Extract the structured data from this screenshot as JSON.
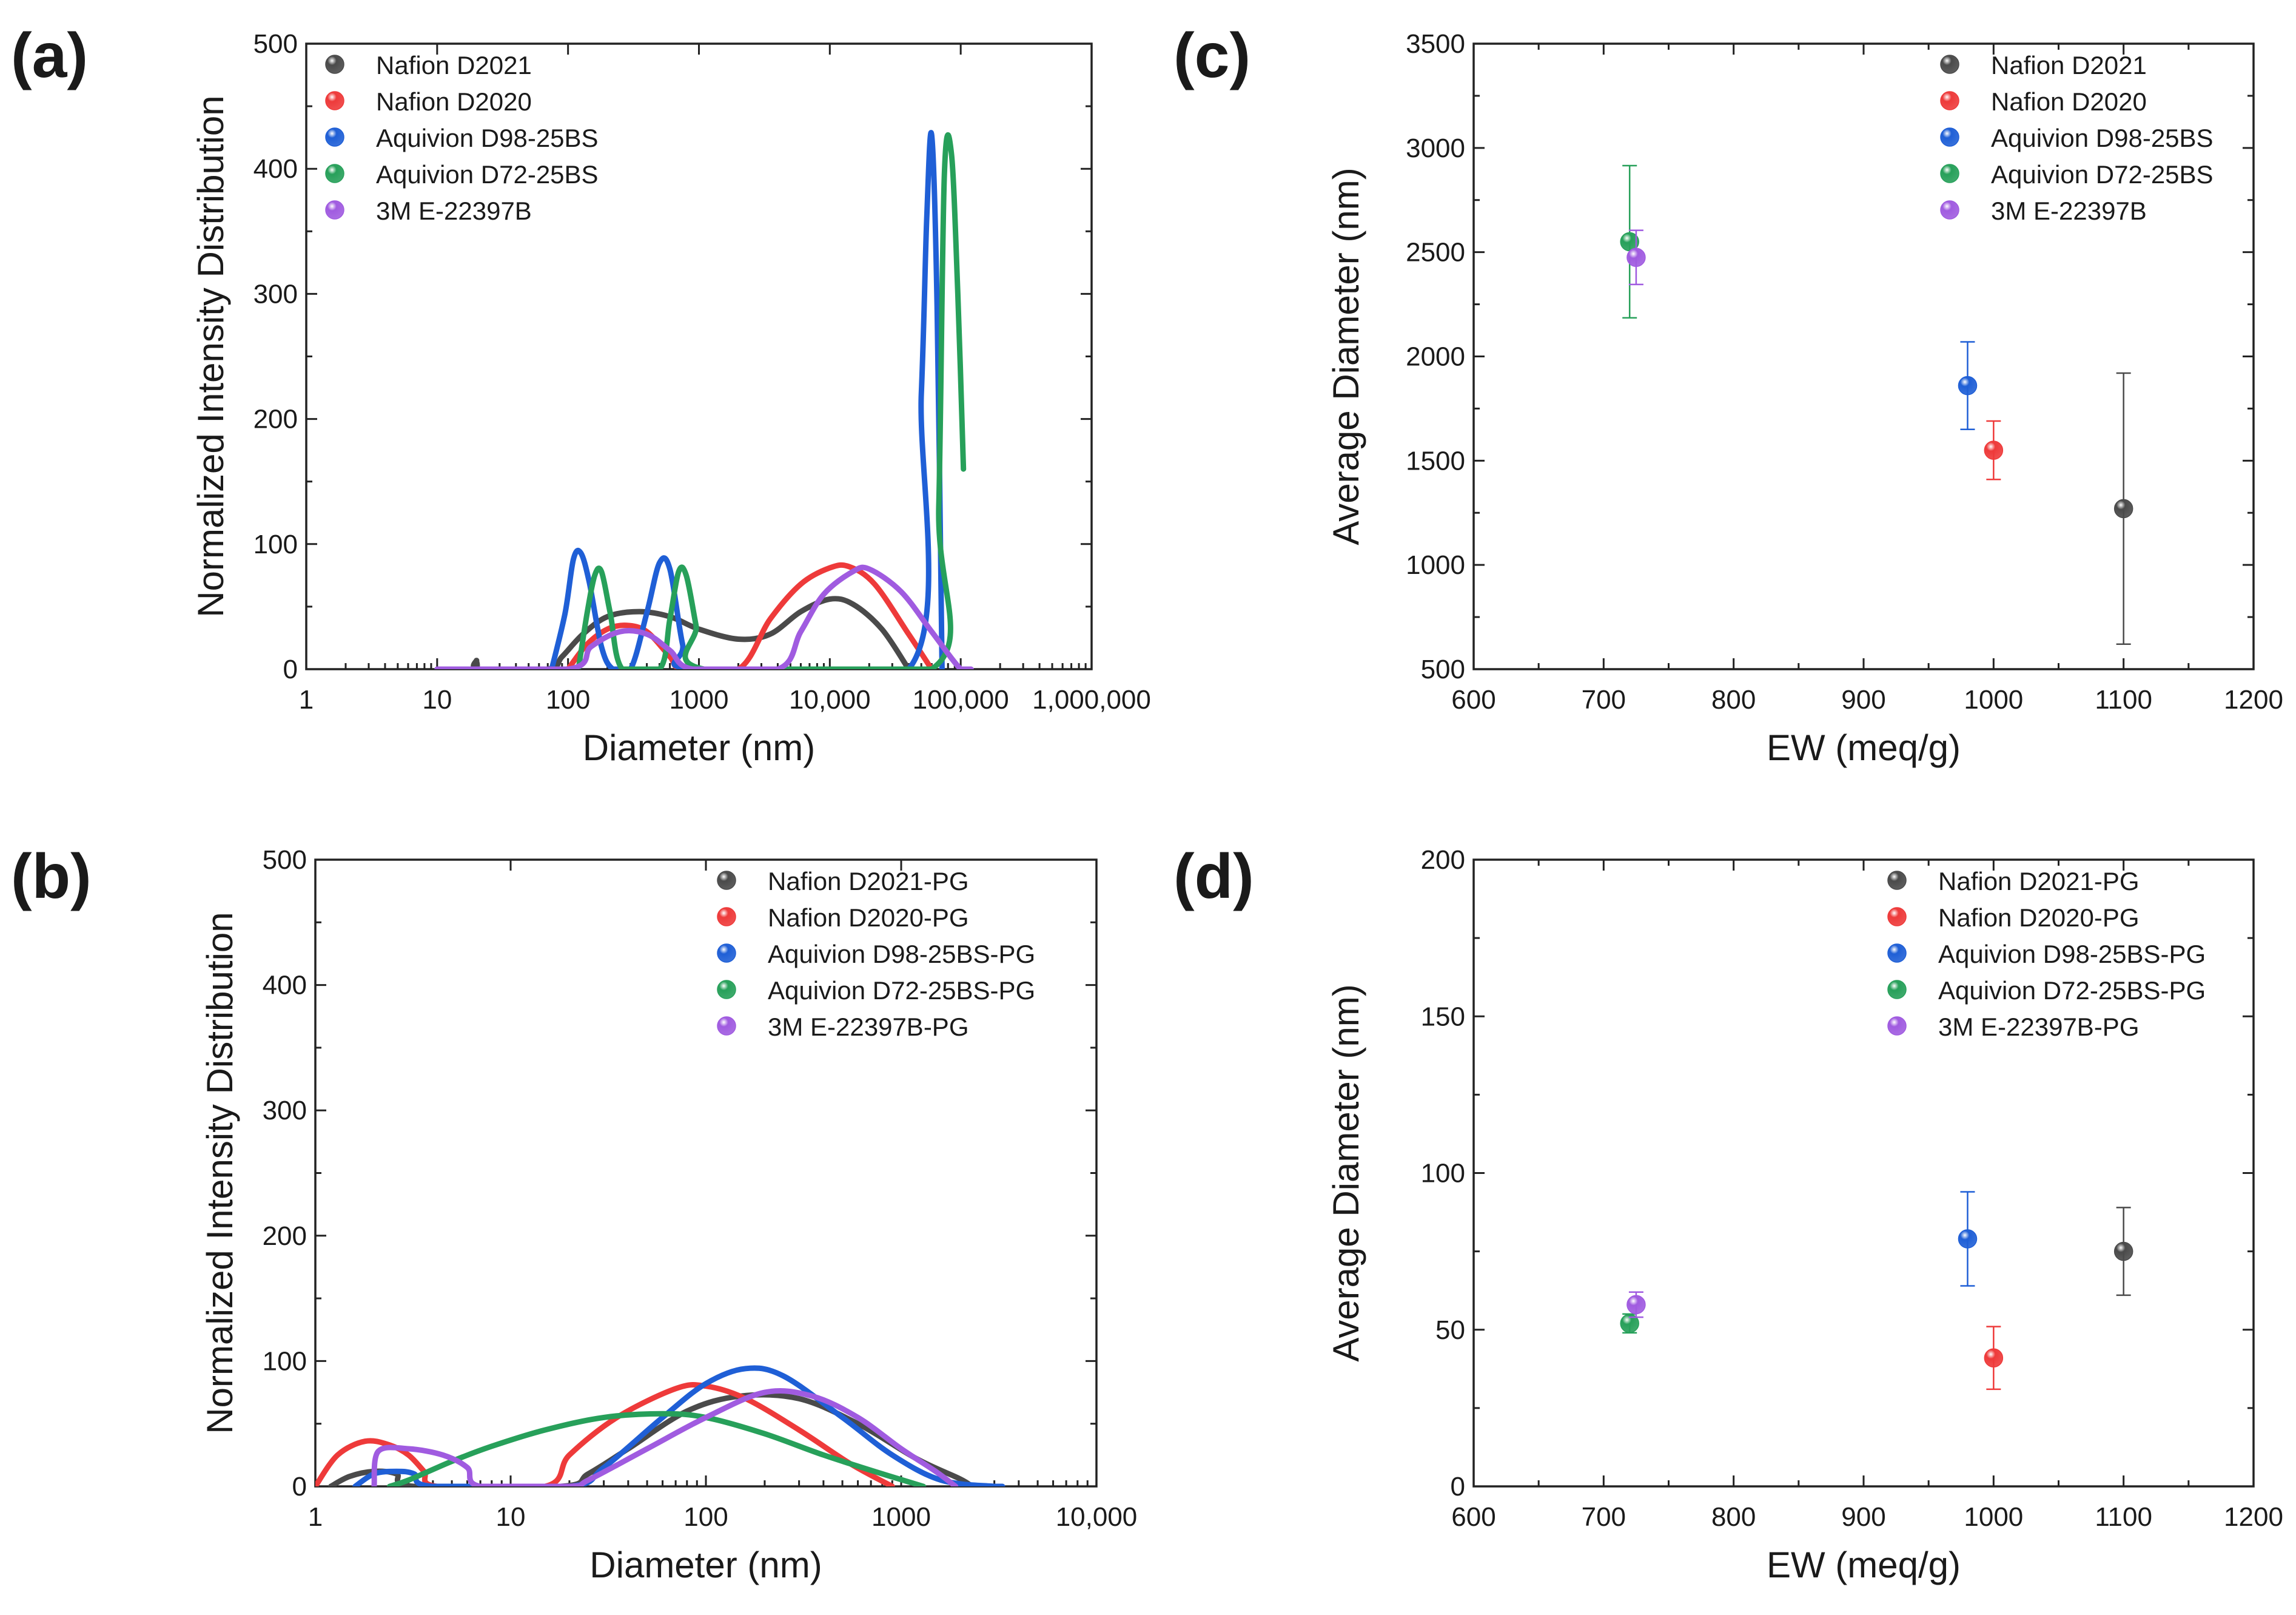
{
  "chart_data": [
    {
      "id": "a",
      "panel_label": "(a)",
      "type": "line",
      "xscale": "log",
      "xlabel": "Diameter (nm)",
      "ylabel": "Normalized Intensity Distribution",
      "xlim": [
        1,
        1000000
      ],
      "ylim": [
        0,
        500
      ],
      "xticks": [
        {
          "value": 1,
          "label": "1"
        },
        {
          "value": 10,
          "label": "10"
        },
        {
          "value": 100,
          "label": "100"
        },
        {
          "value": 1000,
          "label": "1000"
        },
        {
          "value": 10000,
          "label": "10,000"
        },
        {
          "value": 100000,
          "label": "100,000"
        },
        {
          "value": 1000000,
          "label": "1,000,000"
        }
      ],
      "yticks": [
        0,
        100,
        200,
        300,
        400,
        500
      ],
      "legend_position": "top-left",
      "series": [
        {
          "name": "Nafion D2021",
          "color": "#4a4a4a",
          "points": [
            [
              10,
              0
            ],
            [
              19,
              0
            ],
            [
              20,
              7
            ],
            [
              21,
              0
            ],
            [
              70,
              0
            ],
            [
              90,
              10
            ],
            [
              130,
              28
            ],
            [
              200,
              42
            ],
            [
              350,
              46
            ],
            [
              600,
              42
            ],
            [
              1000,
              32
            ],
            [
              2000,
              24
            ],
            [
              3500,
              28
            ],
            [
              6000,
              46
            ],
            [
              10000,
              56
            ],
            [
              15000,
              52
            ],
            [
              25000,
              32
            ],
            [
              40000,
              0
            ]
          ]
        },
        {
          "name": "Nafion D2020",
          "color": "#ee3a3a",
          "points": [
            [
              100,
              0
            ],
            [
              140,
              20
            ],
            [
              200,
              32
            ],
            [
              280,
              35
            ],
            [
              400,
              30
            ],
            [
              600,
              10
            ],
            [
              750,
              0
            ],
            [
              2000,
              0
            ],
            [
              3500,
              40
            ],
            [
              6000,
              68
            ],
            [
              10000,
              81
            ],
            [
              14000,
              82
            ],
            [
              22000,
              68
            ],
            [
              40000,
              28
            ],
            [
              60000,
              0
            ]
          ]
        },
        {
          "name": "Aquivion D98-25BS",
          "color": "#1f5fd6",
          "points": [
            [
              75,
              0
            ],
            [
              95,
              45
            ],
            [
              110,
              88
            ],
            [
              125,
              93
            ],
            [
              145,
              70
            ],
            [
              180,
              18
            ],
            [
              220,
              0
            ],
            [
              300,
              0
            ],
            [
              400,
              45
            ],
            [
              500,
              85
            ],
            [
              600,
              80
            ],
            [
              750,
              20
            ],
            [
              900,
              0
            ],
            [
              40000,
              0
            ],
            [
              50000,
              220
            ],
            [
              55000,
              360
            ],
            [
              60000,
              427
            ],
            [
              66000,
              290
            ],
            [
              72000,
              0
            ]
          ]
        },
        {
          "name": "Aquivion D72-25BS",
          "color": "#27a05a",
          "points": [
            [
              120,
              0
            ],
            [
              140,
              45
            ],
            [
              160,
              75
            ],
            [
              180,
              78
            ],
            [
              210,
              45
            ],
            [
              260,
              0
            ],
            [
              500,
              0
            ],
            [
              600,
              40
            ],
            [
              700,
              78
            ],
            [
              800,
              75
            ],
            [
              950,
              35
            ],
            [
              1100,
              0
            ],
            [
              60000,
              0
            ],
            [
              68000,
              130
            ],
            [
              75000,
              395
            ],
            [
              85000,
              412
            ],
            [
              95000,
              300
            ],
            [
              105000,
              160
            ]
          ]
        },
        {
          "name": "3M E-22397B",
          "color": "#a05be0",
          "points": [
            [
              10,
              0
            ],
            [
              100,
              0
            ],
            [
              150,
              18
            ],
            [
              250,
              30
            ],
            [
              400,
              28
            ],
            [
              600,
              15
            ],
            [
              900,
              0
            ],
            [
              4000,
              0
            ],
            [
              6000,
              30
            ],
            [
              9000,
              60
            ],
            [
              15000,
              78
            ],
            [
              20000,
              80
            ],
            [
              35000,
              62
            ],
            [
              60000,
              30
            ],
            [
              100000,
              0
            ],
            [
              120000,
              0
            ]
          ]
        }
      ]
    },
    {
      "id": "b",
      "panel_label": "(b)",
      "type": "line",
      "xscale": "log",
      "xlabel": "Diameter (nm)",
      "ylabel": "Normalized Intensity Distribution",
      "xlim": [
        1,
        10000
      ],
      "ylim": [
        0,
        500
      ],
      "xticks": [
        {
          "value": 1,
          "label": "1"
        },
        {
          "value": 10,
          "label": "10"
        },
        {
          "value": 100,
          "label": "100"
        },
        {
          "value": 1000,
          "label": "1000"
        },
        {
          "value": 10000,
          "label": "10,000"
        }
      ],
      "yticks": [
        0,
        100,
        200,
        300,
        400,
        500
      ],
      "legend_position": "top-right",
      "series": [
        {
          "name": "Nafion D2021-PG",
          "color": "#4a4a4a",
          "points": [
            [
              1.2,
              0
            ],
            [
              1.5,
              8
            ],
            [
              2,
              12
            ],
            [
              2.6,
              10
            ],
            [
              3.2,
              0
            ],
            [
              18,
              0
            ],
            [
              25,
              10
            ],
            [
              40,
              30
            ],
            [
              80,
              60
            ],
            [
              150,
              72
            ],
            [
              300,
              70
            ],
            [
              600,
              50
            ],
            [
              1200,
              22
            ],
            [
              2000,
              6
            ],
            [
              2300,
              0
            ]
          ]
        },
        {
          "name": "Nafion D2020-PG",
          "color": "#ee3a3a",
          "points": [
            [
              1,
              0
            ],
            [
              1.3,
              25
            ],
            [
              1.8,
              36
            ],
            [
              2.4,
              33
            ],
            [
              3,
              25
            ],
            [
              3.6,
              12
            ],
            [
              4.2,
              0
            ],
            [
              15,
              0
            ],
            [
              20,
              25
            ],
            [
              35,
              55
            ],
            [
              70,
              78
            ],
            [
              100,
              80
            ],
            [
              160,
              70
            ],
            [
              300,
              45
            ],
            [
              550,
              18
            ],
            [
              900,
              0
            ]
          ]
        },
        {
          "name": "Aquivion D98-25BS-PG",
          "color": "#1f5fd6",
          "points": [
            [
              1.6,
              0
            ],
            [
              2,
              10
            ],
            [
              2.6,
              12
            ],
            [
              3.2,
              10
            ],
            [
              4,
              0
            ],
            [
              20,
              0
            ],
            [
              30,
              15
            ],
            [
              60,
              55
            ],
            [
              100,
              82
            ],
            [
              160,
              94
            ],
            [
              250,
              88
            ],
            [
              500,
              55
            ],
            [
              900,
              25
            ],
            [
              1600,
              5
            ],
            [
              3000,
              0
            ],
            [
              3300,
              0
            ]
          ]
        },
        {
          "name": "Aquivion D72-25BS-PG",
          "color": "#27a05a",
          "points": [
            [
              2.4,
              0
            ],
            [
              3,
              5
            ],
            [
              5,
              20
            ],
            [
              8,
              32
            ],
            [
              15,
              45
            ],
            [
              30,
              55
            ],
            [
              60,
              58
            ],
            [
              100,
              55
            ],
            [
              200,
              42
            ],
            [
              400,
              25
            ],
            [
              800,
              10
            ],
            [
              1300,
              0
            ]
          ]
        },
        {
          "name": "3M E-22397B-PG",
          "color": "#a05be0",
          "points": [
            [
              2,
              0
            ],
            [
              2.1,
              28
            ],
            [
              3,
              30
            ],
            [
              4.5,
              25
            ],
            [
              6,
              15
            ],
            [
              7,
              0
            ],
            [
              20,
              0
            ],
            [
              25,
              5
            ],
            [
              50,
              30
            ],
            [
              100,
              55
            ],
            [
              200,
              75
            ],
            [
              350,
              72
            ],
            [
              600,
              55
            ],
            [
              1000,
              30
            ],
            [
              1500,
              12
            ],
            [
              1900,
              0
            ]
          ]
        }
      ]
    },
    {
      "id": "c",
      "panel_label": "(c)",
      "type": "scatter",
      "xlabel": "EW (meq/g)",
      "ylabel": "Average Diameter (nm)",
      "xlim": [
        600,
        1200
      ],
      "ylim": [
        500,
        3500
      ],
      "xticks": [
        600,
        700,
        800,
        900,
        1000,
        1100,
        1200
      ],
      "yticks": [
        500,
        1000,
        1500,
        2000,
        2500,
        3000,
        3500
      ],
      "legend_position": "top-right",
      "series": [
        {
          "name": "Nafion D2021",
          "color": "#4a4a4a",
          "x": 1100,
          "y": 1270,
          "err": 650
        },
        {
          "name": "Nafion D2020",
          "color": "#ee3a3a",
          "x": 1000,
          "y": 1550,
          "err": 140
        },
        {
          "name": "Aquivion D98-25BS",
          "color": "#1f5fd6",
          "x": 980,
          "y": 1860,
          "err": 210
        },
        {
          "name": "Aquivion D72-25BS",
          "color": "#27a05a",
          "x": 720,
          "y": 2550,
          "err": 365
        },
        {
          "name": "3M E-22397B",
          "color": "#a05be0",
          "x": 725,
          "y": 2475,
          "err": 130
        }
      ]
    },
    {
      "id": "d",
      "panel_label": "(d)",
      "type": "scatter",
      "xlabel": "EW (meq/g)",
      "ylabel": "Average Diameter (nm)",
      "xlim": [
        600,
        1200
      ],
      "ylim": [
        0,
        200
      ],
      "xticks": [
        600,
        700,
        800,
        900,
        1000,
        1100,
        1200
      ],
      "yticks": [
        0,
        50,
        100,
        150,
        200
      ],
      "legend_position": "top-right",
      "series": [
        {
          "name": "Nafion D2021-PG",
          "color": "#4a4a4a",
          "x": 1100,
          "y": 75,
          "err": 14
        },
        {
          "name": "Nafion D2020-PG",
          "color": "#ee3a3a",
          "x": 1000,
          "y": 41,
          "err": 10
        },
        {
          "name": "Aquivion D98-25BS-PG",
          "color": "#1f5fd6",
          "x": 980,
          "y": 79,
          "err": 15
        },
        {
          "name": "Aquivion D72-25BS-PG",
          "color": "#27a05a",
          "x": 720,
          "y": 52,
          "err": 3
        },
        {
          "name": "3M E-22397B-PG",
          "color": "#a05be0",
          "x": 725,
          "y": 58,
          "err": 4
        }
      ]
    }
  ]
}
